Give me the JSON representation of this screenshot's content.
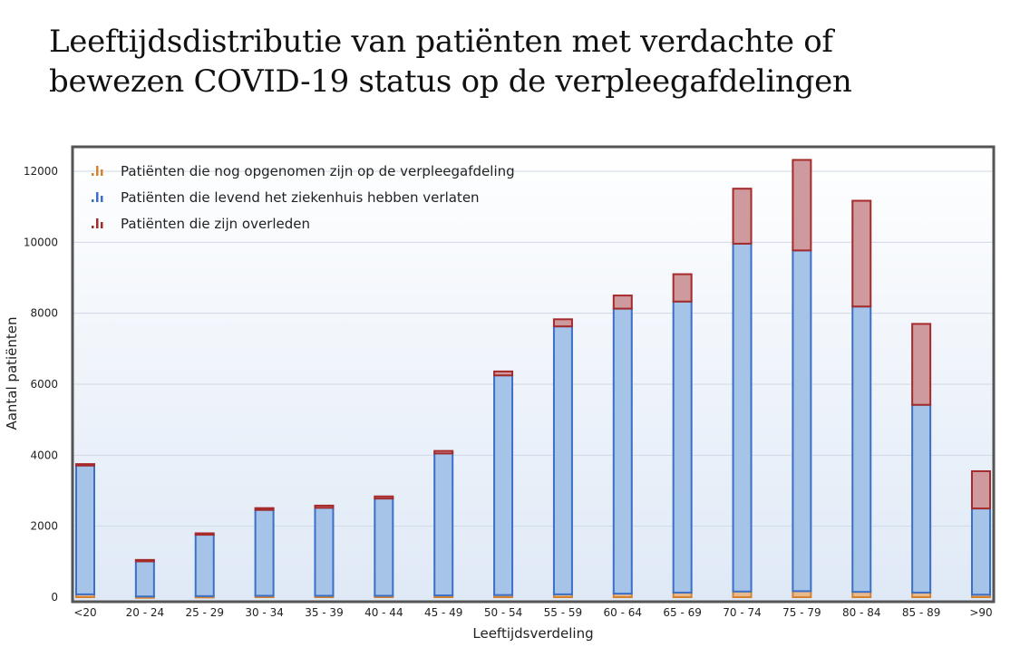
{
  "title": {
    "line1": "Leeftijdsdistributie van patiënten met verdachte of",
    "line2": "bewezen COVID-19 status op de verpleegafdelingen"
  },
  "chart_data": {
    "type": "bar",
    "stacked": true,
    "title": "Leeftijdsdistributie van patiënten met verdachte of bewezen COVID-19 status op de verpleegafdelingen",
    "xlabel": "Leeftijdsverdeling",
    "ylabel": "Aantal patiënten",
    "ylim": [
      0,
      12400
    ],
    "yticks": [
      0,
      2000,
      4000,
      6000,
      8000,
      10000,
      12000
    ],
    "grid": true,
    "legend_position": "top-left",
    "categories": [
      "<20",
      "20 - 24",
      "25 - 29",
      "30 - 34",
      "35 - 39",
      "40 - 44",
      "45 - 49",
      "50 - 54",
      "55 - 59",
      "60 - 64",
      "65 - 69",
      "70 - 74",
      "75 - 79",
      "80 - 84",
      "85 - 89",
      ">90"
    ],
    "series": [
      {
        "name": "Patiënten die nog opgenomen zijn op de verpleegafdeling",
        "fill": "#e8b98a",
        "stroke": "#d4822e",
        "values": [
          80,
          20,
          30,
          40,
          40,
          40,
          50,
          60,
          80,
          100,
          130,
          160,
          170,
          150,
          130,
          70
        ]
      },
      {
        "name": "Patiënten die levend het ziekenhuis hebben verlaten",
        "fill": "#a6c3e8",
        "stroke": "#3c6fc8",
        "values": [
          3630,
          990,
          1730,
          2420,
          2480,
          2740,
          4000,
          6190,
          7550,
          8030,
          8200,
          9800,
          9600,
          8040,
          5290,
          2430
        ]
      },
      {
        "name": "Patiënten die zijn overleden",
        "fill": "#cf9a9e",
        "stroke": "#a52a2a",
        "values": [
          40,
          40,
          40,
          50,
          60,
          60,
          70,
          110,
          200,
          370,
          770,
          1550,
          2550,
          2980,
          2280,
          1050
        ]
      }
    ]
  }
}
